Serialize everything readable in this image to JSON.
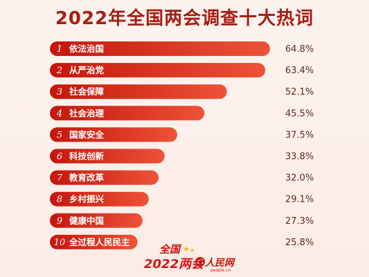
{
  "chart_data": {
    "type": "bar",
    "title": "2022年全国两会调查十大热词",
    "categories": [
      "依法治国",
      "从严治党",
      "社会保障",
      "社会治理",
      "国家安全",
      "科技创新",
      "教育改革",
      "乡村振兴",
      "健康中国",
      "全过程人民民主"
    ],
    "ranks": [
      "1",
      "2",
      "3",
      "4",
      "5",
      "6",
      "7",
      "8",
      "9",
      "10"
    ],
    "values": [
      64.8,
      63.4,
      52.1,
      45.5,
      37.5,
      33.8,
      32.0,
      29.1,
      27.3,
      25.8
    ],
    "value_labels": [
      "64.8%",
      "63.4%",
      "52.1%",
      "45.5%",
      "37.5%",
      "33.8%",
      "32.0%",
      "29.1%",
      "27.3%",
      "25.8%"
    ],
    "orientation": "horizontal",
    "colors": {
      "bar_start": "#c4160c",
      "bar_end": "#f0624a",
      "title": "#a51d12"
    }
  },
  "logo": {
    "top": "全国",
    "year": "2022",
    "bottom": "两会",
    "brand": "人民网",
    "url": "people.cn"
  }
}
